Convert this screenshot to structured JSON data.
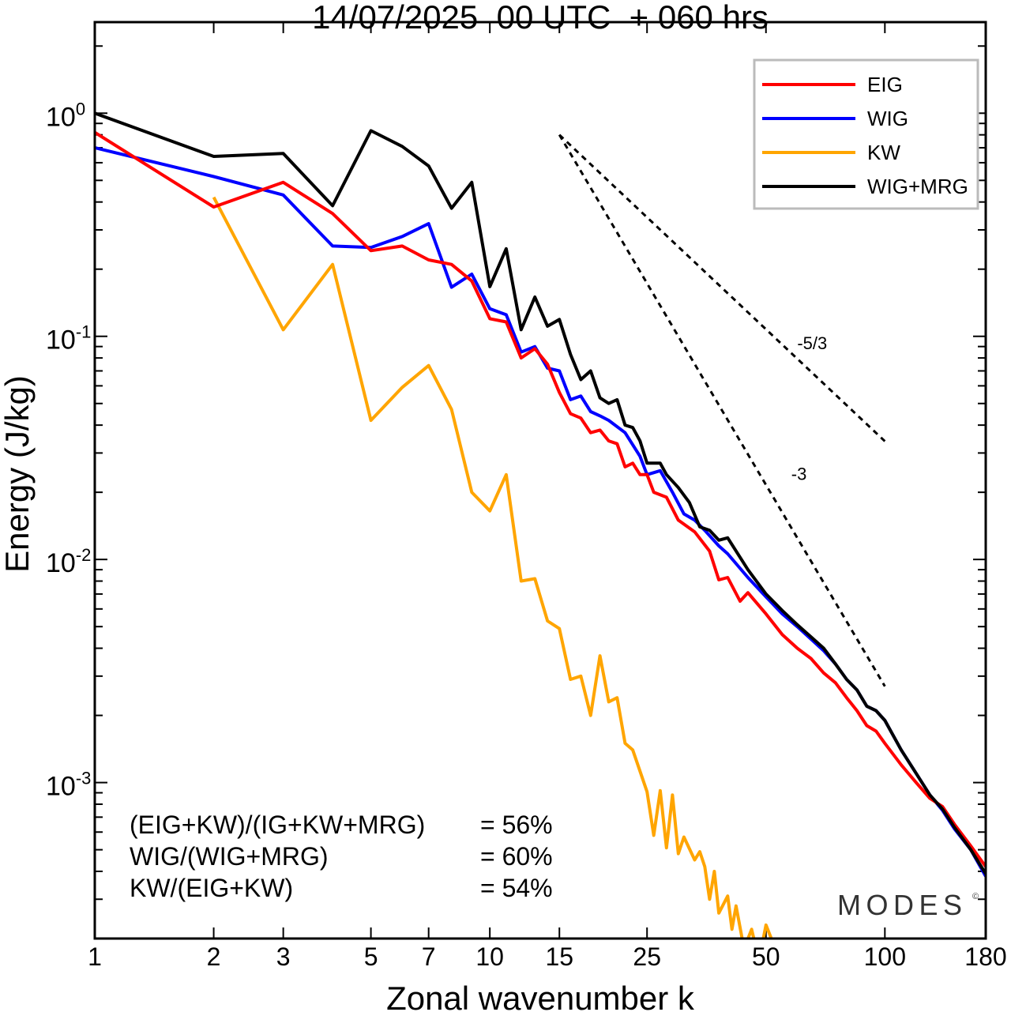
{
  "chart_data": {
    "type": "line",
    "title": "14/07/2025  00 UTC  + 060 hrs",
    "xlabel": "Zonal wavenumber k",
    "ylabel": "Energy (J/kg)",
    "xscale": "log",
    "yscale": "log",
    "xlim": [
      1,
      180
    ],
    "ylim": [
      0.0002,
      2.56
    ],
    "xticks": [
      1,
      2,
      3,
      5,
      7,
      10,
      15,
      25,
      50,
      100,
      180
    ],
    "xtick_labels": [
      "1",
      "2",
      "3",
      "5",
      "7",
      "10",
      "15",
      "25",
      "50",
      "100",
      "180"
    ],
    "yticks": [
      {
        "value": 1,
        "base": "10",
        "exp": "0"
      },
      {
        "value": 0.1,
        "base": "10",
        "exp": "-1"
      },
      {
        "value": 0.01,
        "base": "10",
        "exp": "-2"
      },
      {
        "value": 0.001,
        "base": "10",
        "exp": "-3"
      }
    ],
    "legend_position": "top-right",
    "series": [
      {
        "name": "EIG",
        "color": "#ff0000",
        "points": [
          [
            1,
            0.82
          ],
          [
            2,
            0.38
          ],
          [
            3,
            0.49
          ],
          [
            4,
            0.355
          ],
          [
            5,
            0.242
          ],
          [
            6,
            0.254
          ],
          [
            7,
            0.22
          ],
          [
            8,
            0.21
          ],
          [
            9,
            0.177
          ],
          [
            10,
            0.12
          ],
          [
            11,
            0.116
          ],
          [
            12,
            0.08
          ],
          [
            13,
            0.088
          ],
          [
            14,
            0.075
          ],
          [
            15,
            0.056
          ],
          [
            16,
            0.045
          ],
          [
            17,
            0.043
          ],
          [
            18,
            0.037
          ],
          [
            19,
            0.038
          ],
          [
            20,
            0.034
          ],
          [
            21,
            0.033
          ],
          [
            22,
            0.026
          ],
          [
            23,
            0.027
          ],
          [
            24,
            0.024
          ],
          [
            25,
            0.024
          ],
          [
            26,
            0.02
          ],
          [
            28,
            0.019
          ],
          [
            30,
            0.015
          ],
          [
            33,
            0.0133
          ],
          [
            36,
            0.0109
          ],
          [
            38,
            0.0081
          ],
          [
            40,
            0.0083
          ],
          [
            43,
            0.0065
          ],
          [
            45,
            0.0071
          ],
          [
            50,
            0.0057
          ],
          [
            55,
            0.0046
          ],
          [
            60,
            0.004
          ],
          [
            65,
            0.0036
          ],
          [
            70,
            0.0031
          ],
          [
            75,
            0.0028
          ],
          [
            80,
            0.0024
          ],
          [
            85,
            0.0021
          ],
          [
            90,
            0.0018
          ],
          [
            95,
            0.0017
          ],
          [
            100,
            0.0015
          ],
          [
            110,
            0.0012
          ],
          [
            120,
            0.001
          ],
          [
            130,
            0.00085
          ],
          [
            140,
            0.00078
          ],
          [
            150,
            0.00065
          ],
          [
            165,
            0.00052
          ],
          [
            180,
            0.00042
          ]
        ]
      },
      {
        "name": "WIG",
        "color": "#0000ff",
        "points": [
          [
            1,
            0.7
          ],
          [
            2,
            0.52
          ],
          [
            3,
            0.43
          ],
          [
            4,
            0.254
          ],
          [
            5,
            0.25
          ],
          [
            6,
            0.28
          ],
          [
            7,
            0.32
          ],
          [
            8,
            0.166
          ],
          [
            9,
            0.19
          ],
          [
            10,
            0.133
          ],
          [
            11,
            0.125
          ],
          [
            12,
            0.085
          ],
          [
            13,
            0.09
          ],
          [
            14,
            0.072
          ],
          [
            15,
            0.07
          ],
          [
            16,
            0.052
          ],
          [
            17,
            0.054
          ],
          [
            18,
            0.046
          ],
          [
            19,
            0.044
          ],
          [
            20,
            0.042
          ],
          [
            22,
            0.037
          ],
          [
            24,
            0.029
          ],
          [
            25,
            0.024
          ],
          [
            27,
            0.025
          ],
          [
            29,
            0.02
          ],
          [
            31,
            0.016
          ],
          [
            33,
            0.015
          ],
          [
            35,
            0.0135
          ],
          [
            38,
            0.0115
          ],
          [
            40,
            0.0106
          ],
          [
            45,
            0.0083
          ],
          [
            50,
            0.0068
          ],
          [
            55,
            0.0057
          ],
          [
            60,
            0.005
          ],
          [
            65,
            0.0044
          ],
          [
            70,
            0.0039
          ],
          [
            75,
            0.0034
          ],
          [
            80,
            0.0029
          ],
          [
            85,
            0.0026
          ],
          [
            90,
            0.0022
          ],
          [
            95,
            0.0021
          ],
          [
            100,
            0.0019
          ],
          [
            110,
            0.0014
          ],
          [
            120,
            0.0011
          ],
          [
            130,
            0.00088
          ],
          [
            140,
            0.00075
          ],
          [
            150,
            0.00062
          ],
          [
            165,
            0.0005
          ],
          [
            180,
            0.00038
          ]
        ]
      },
      {
        "name": "KW",
        "color": "#ffa500",
        "points": [
          [
            2,
            0.42
          ],
          [
            3,
            0.107
          ],
          [
            4,
            0.21
          ],
          [
            5,
            0.042
          ],
          [
            6,
            0.059
          ],
          [
            7,
            0.074
          ],
          [
            8,
            0.047
          ],
          [
            9,
            0.02
          ],
          [
            10,
            0.0165
          ],
          [
            11,
            0.024
          ],
          [
            12,
            0.008
          ],
          [
            13,
            0.0082
          ],
          [
            14,
            0.0053
          ],
          [
            15,
            0.0049
          ],
          [
            16,
            0.0029
          ],
          [
            17,
            0.003
          ],
          [
            18,
            0.002
          ],
          [
            19,
            0.0037
          ],
          [
            20,
            0.0023
          ],
          [
            21,
            0.0024
          ],
          [
            22,
            0.0015
          ],
          [
            23,
            0.0014
          ],
          [
            25,
            0.00091
          ],
          [
            26,
            0.00058
          ],
          [
            27,
            0.00092
          ],
          [
            28,
            0.00051
          ],
          [
            29,
            0.00088
          ],
          [
            30,
            0.00048
          ],
          [
            31,
            0.00057
          ],
          [
            33,
            0.00045
          ],
          [
            34,
            0.00049
          ],
          [
            35,
            0.00042
          ],
          [
            36,
            0.0003
          ],
          [
            37,
            0.0004
          ],
          [
            38,
            0.00026
          ],
          [
            40,
            0.00031
          ],
          [
            41,
            0.00022
          ],
          [
            42,
            0.00028
          ],
          [
            44,
            0.00018
          ],
          [
            46,
            0.00022
          ],
          [
            48,
            0.00016
          ],
          [
            50,
            0.00023
          ],
          [
            55,
            0.00015
          ],
          [
            60,
            0.00019
          ],
          [
            65,
            0.00014
          ]
        ]
      },
      {
        "name": "WIG+MRG",
        "color": "#000000",
        "points": [
          [
            1,
            1.0
          ],
          [
            2,
            0.64
          ],
          [
            3,
            0.66
          ],
          [
            4,
            0.385
          ],
          [
            5,
            0.835
          ],
          [
            6,
            0.71
          ],
          [
            7,
            0.58
          ],
          [
            8,
            0.375
          ],
          [
            9,
            0.49
          ],
          [
            10,
            0.167
          ],
          [
            11,
            0.247
          ],
          [
            12,
            0.107
          ],
          [
            13,
            0.15
          ],
          [
            14,
            0.111
          ],
          [
            15,
            0.119
          ],
          [
            16,
            0.083
          ],
          [
            17,
            0.064
          ],
          [
            18,
            0.07
          ],
          [
            19,
            0.053
          ],
          [
            20,
            0.05
          ],
          [
            21,
            0.052
          ],
          [
            22,
            0.04
          ],
          [
            23,
            0.039
          ],
          [
            24,
            0.034
          ],
          [
            25,
            0.027
          ],
          [
            27,
            0.027
          ],
          [
            28,
            0.024
          ],
          [
            30,
            0.021
          ],
          [
            32,
            0.018
          ],
          [
            34,
            0.014
          ],
          [
            36,
            0.0135
          ],
          [
            38,
            0.0122
          ],
          [
            40,
            0.0125
          ],
          [
            45,
            0.009
          ],
          [
            50,
            0.007
          ],
          [
            55,
            0.0059
          ],
          [
            60,
            0.0051
          ],
          [
            65,
            0.0045
          ],
          [
            70,
            0.004
          ],
          [
            75,
            0.0034
          ],
          [
            80,
            0.0029
          ],
          [
            85,
            0.0026
          ],
          [
            90,
            0.0022
          ],
          [
            95,
            0.0021
          ],
          [
            100,
            0.0019
          ],
          [
            110,
            0.0014
          ],
          [
            120,
            0.0011
          ],
          [
            130,
            0.00088
          ],
          [
            140,
            0.00076
          ],
          [
            150,
            0.00063
          ],
          [
            165,
            0.0005
          ],
          [
            180,
            0.00039
          ]
        ]
      }
    ],
    "reference_slopes": [
      {
        "label": "-5/3",
        "slope": -1.6667,
        "k_start": 15,
        "k_end": 100,
        "e_start": 0.8
      },
      {
        "label": "-3",
        "slope": -3,
        "k_start": 15,
        "k_end": 100,
        "e_start": 0.8
      }
    ],
    "annotations": [
      {
        "label": "(EIG+KW)/(IG+KW+MRG)",
        "value": "= 56%"
      },
      {
        "label": "WIG/(WIG+MRG)",
        "value": "= 60%"
      },
      {
        "label": "KW/(EIG+KW)",
        "value": "= 54%"
      }
    ],
    "watermark": "MODES©"
  }
}
